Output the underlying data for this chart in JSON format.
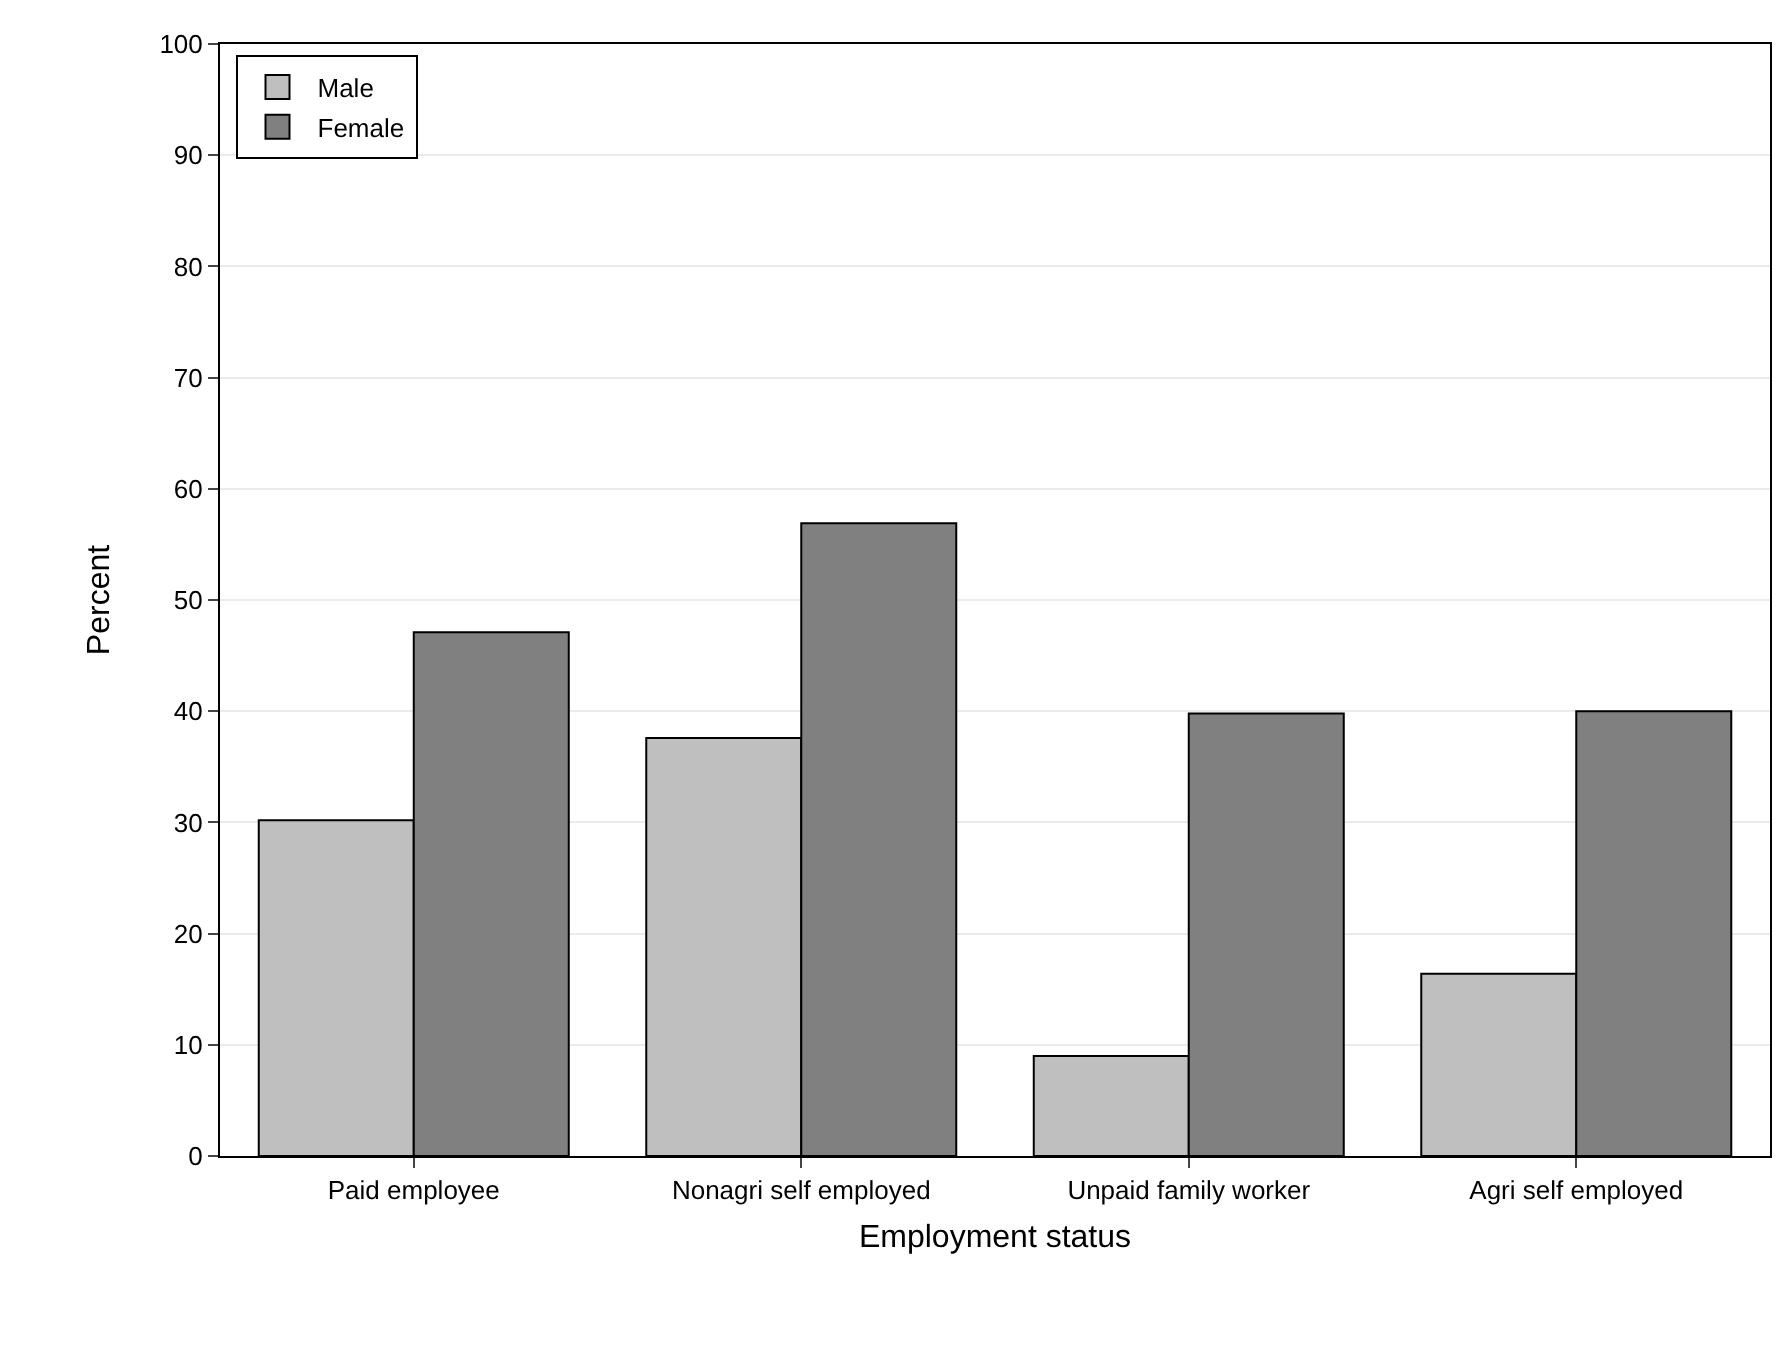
{
  "chart_data": {
    "type": "bar",
    "xlabel": "Employment status",
    "ylabel": "Percent",
    "categories": [
      "Paid employee",
      "Nonagri self employed",
      "Unpaid family worker",
      "Agri self employed"
    ],
    "series": [
      {
        "name": "Male",
        "color": "#bfbfbf",
        "values": [
          30.2,
          37.6,
          9.0,
          16.4
        ]
      },
      {
        "name": "Female",
        "color": "#808080",
        "values": [
          47.1,
          56.9,
          39.8,
          40.0
        ]
      }
    ],
    "ylim": [
      0,
      100
    ],
    "yticks": [
      0,
      10,
      20,
      30,
      40,
      50,
      60,
      70,
      80,
      90,
      100
    ],
    "grid": "y",
    "legend": "top left"
  }
}
